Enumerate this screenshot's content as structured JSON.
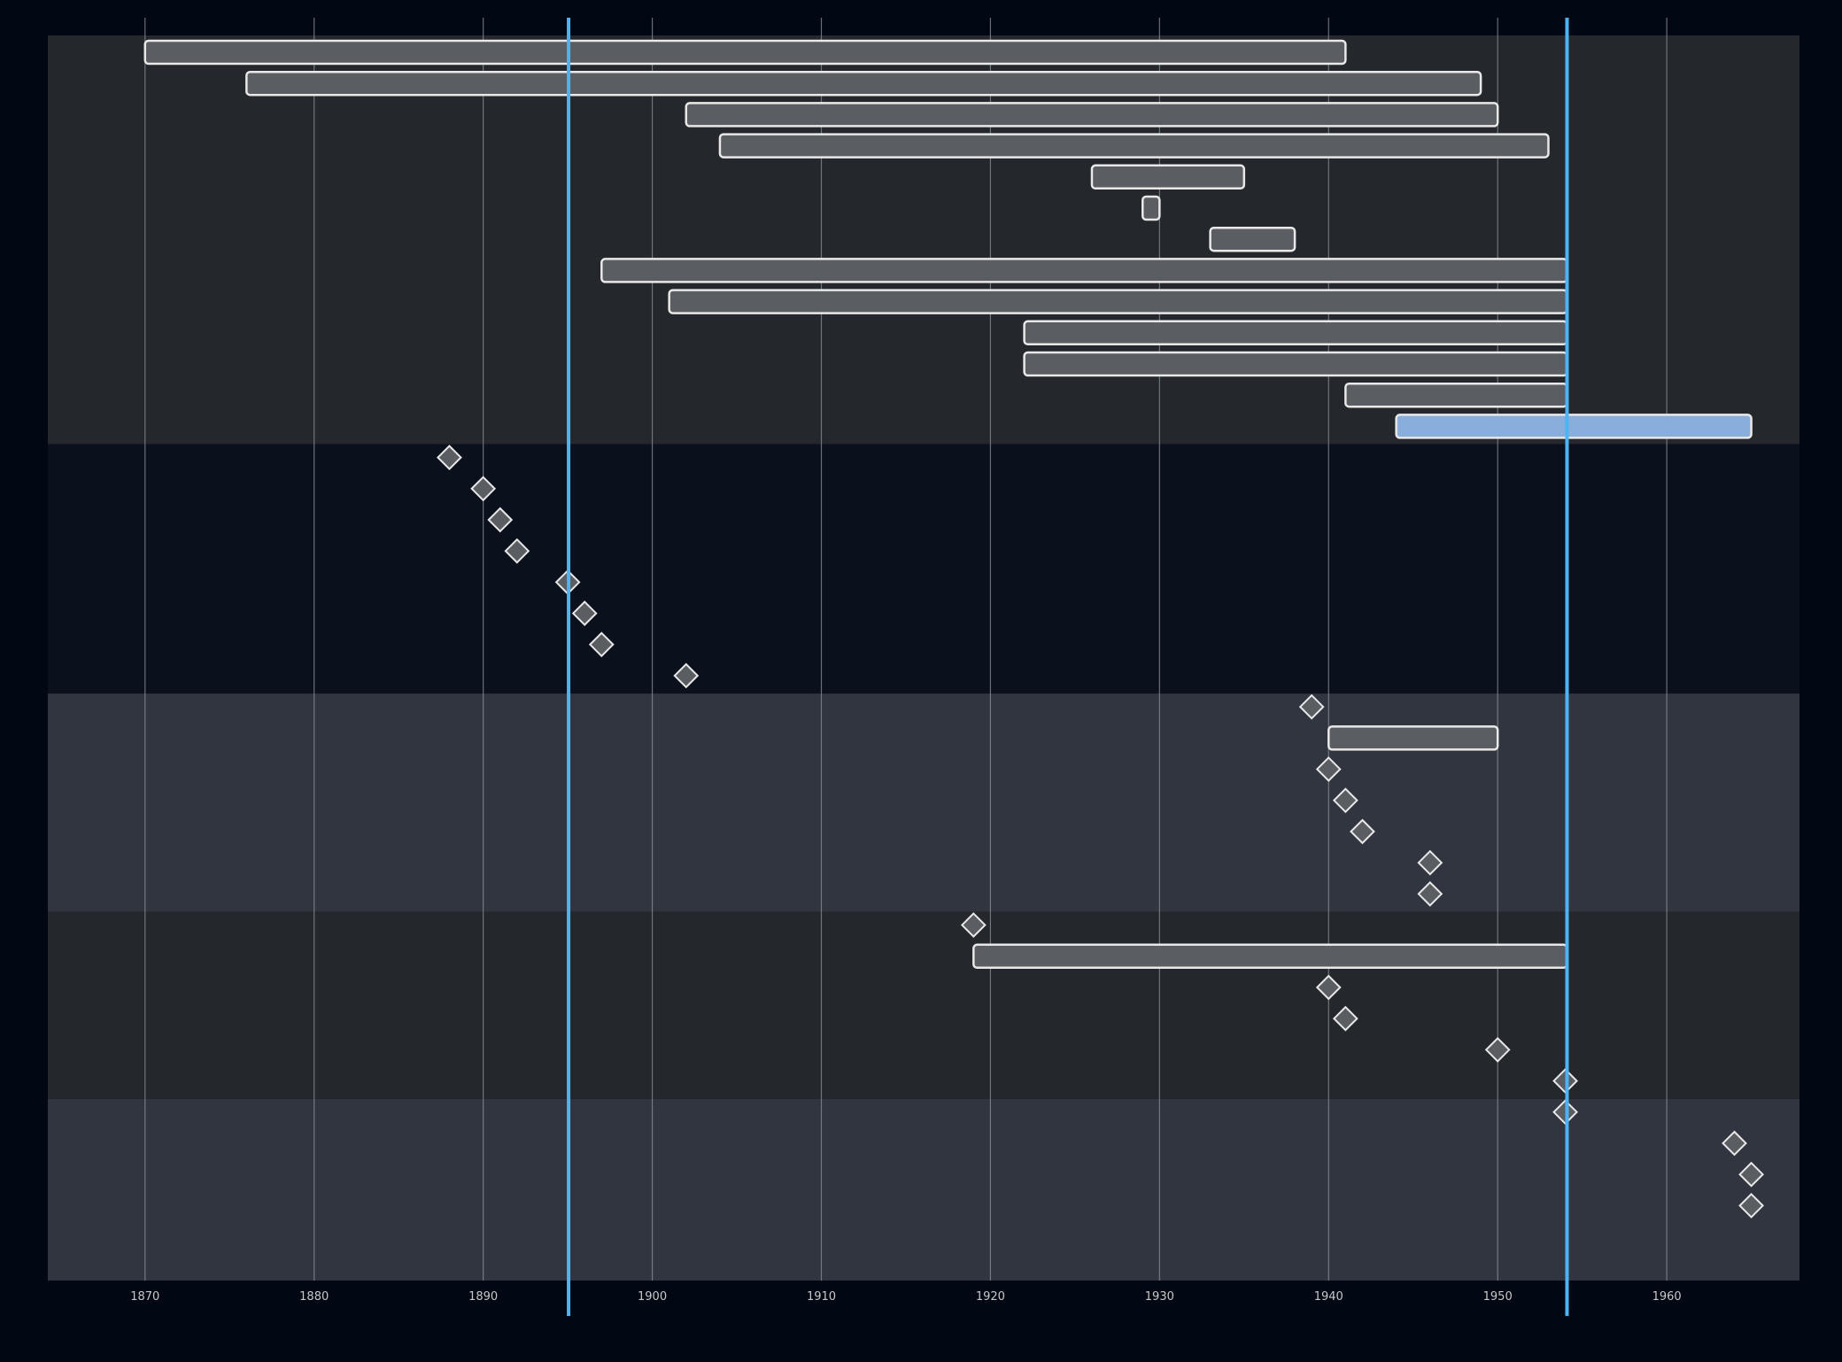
{
  "chart_data": {
    "type": "timeline",
    "title": "",
    "xlabel": "",
    "ylabel": "",
    "xlim": [
      1864.25,
      1967.85
    ],
    "x_ticks": [
      1870,
      1880,
      1890,
      1900,
      1910,
      1920,
      1930,
      1940,
      1950,
      1960
    ],
    "grid": true,
    "bands": [
      {
        "name": "",
        "row_start": 0,
        "row_end": 13,
        "color": "#24272b"
      },
      {
        "name": "",
        "row_start": 13,
        "row_end": 21,
        "color": "#0b111c"
      },
      {
        "name": "",
        "row_start": 21,
        "row_end": 28,
        "color": "#31353f"
      },
      {
        "name": "",
        "row_start": 28,
        "row_end": 34,
        "color": "#24272b"
      },
      {
        "name": "",
        "row_start": 34,
        "row_end": 40,
        "color": "#31353f"
      }
    ],
    "items": [
      {
        "row": 0,
        "kind": "range",
        "start": 1870.0,
        "end": 1941.0,
        "label": ""
      },
      {
        "row": 1,
        "kind": "range",
        "start": 1876.0,
        "end": 1949.0,
        "label": ""
      },
      {
        "row": 2,
        "kind": "range",
        "start": 1902.0,
        "end": 1950.0,
        "label": ""
      },
      {
        "row": 3,
        "kind": "range",
        "start": 1904.0,
        "end": 1953.0,
        "label": ""
      },
      {
        "row": 4,
        "kind": "range",
        "start": 1926.0,
        "end": 1935.0,
        "label": ""
      },
      {
        "row": 5,
        "kind": "range",
        "start": 1929.0,
        "end": 1930.0,
        "label": "",
        "label_pos": "right"
      },
      {
        "row": 6,
        "kind": "range",
        "start": 1933.0,
        "end": 1938.0,
        "label": "",
        "label_pos": "right"
      },
      {
        "row": 7,
        "kind": "range",
        "start": 1897.0,
        "end": 1954.1,
        "label": ""
      },
      {
        "row": 8,
        "kind": "range",
        "start": 1901.0,
        "end": 1954.1,
        "label": ""
      },
      {
        "row": 9,
        "kind": "range",
        "start": 1922.0,
        "end": 1954.1,
        "label": ""
      },
      {
        "row": 10,
        "kind": "range",
        "start": 1922.0,
        "end": 1954.1,
        "label": ""
      },
      {
        "row": 11,
        "kind": "range",
        "start": 1941.0,
        "end": 1954.1,
        "label": ""
      },
      {
        "row": 12,
        "kind": "range",
        "start": 1944.0,
        "end": 1965.0,
        "label": "",
        "highlight": true
      },
      {
        "row": 13,
        "kind": "point",
        "date": 1888.0,
        "label": ""
      },
      {
        "row": 14,
        "kind": "point",
        "date": 1890.0,
        "label": ""
      },
      {
        "row": 15,
        "kind": "point",
        "date": 1891.0,
        "label": ""
      },
      {
        "row": 16,
        "kind": "point",
        "date": 1892.0,
        "label": ""
      },
      {
        "row": 17,
        "kind": "point",
        "date": 1895.0,
        "label": ""
      },
      {
        "row": 18,
        "kind": "point",
        "date": 1896.0,
        "label": ""
      },
      {
        "row": 19,
        "kind": "point",
        "date": 1897.0,
        "label": ""
      },
      {
        "row": 20,
        "kind": "point",
        "date": 1902.0,
        "label": ""
      },
      {
        "row": 21,
        "kind": "point",
        "date": 1939.0,
        "label": ""
      },
      {
        "row": 22,
        "kind": "range",
        "start": 1940.0,
        "end": 1950.0,
        "label": ""
      },
      {
        "row": 23,
        "kind": "point",
        "date": 1940.0,
        "label": ""
      },
      {
        "row": 24,
        "kind": "point",
        "date": 1941.0,
        "label": ""
      },
      {
        "row": 25,
        "kind": "point",
        "date": 1942.0,
        "label": ""
      },
      {
        "row": 26,
        "kind": "point",
        "date": 1946.0,
        "label": ""
      },
      {
        "row": 27,
        "kind": "point",
        "date": 1946.0,
        "label": ""
      },
      {
        "row": 28,
        "kind": "point",
        "date": 1919.0,
        "label": ""
      },
      {
        "row": 29,
        "kind": "range",
        "start": 1919.0,
        "end": 1954.1,
        "label": ""
      },
      {
        "row": 30,
        "kind": "point",
        "date": 1940.0,
        "label": ""
      },
      {
        "row": 31,
        "kind": "point",
        "date": 1941.0,
        "label": ""
      },
      {
        "row": 32,
        "kind": "point",
        "date": 1950.0,
        "label": ""
      },
      {
        "row": 33,
        "kind": "point",
        "date": 1954.0,
        "label": "",
        "label_pos": "left"
      },
      {
        "row": 34,
        "kind": "point",
        "date": 1954.0,
        "label": ""
      },
      {
        "row": 35,
        "kind": "point",
        "date": 1964.0,
        "label": "",
        "label_pos": "left"
      },
      {
        "row": 36,
        "kind": "point",
        "date": 1965.0,
        "label": "",
        "label_pos": "left"
      },
      {
        "row": 37,
        "kind": "point",
        "date": 1965.0,
        "label": "",
        "label_pos": "left"
      }
    ],
    "markers": [
      {
        "date": 1895.05,
        "label": ""
      },
      {
        "date": 1954.1,
        "label": ""
      }
    ],
    "colors": {
      "background": "#010814",
      "grid": "#8a9098",
      "range_fill": "#5a5e62",
      "range_stroke": "#e8e8e8",
      "highlight_fill": "#8aaedc",
      "point_fill": "#5a5e62",
      "marker": "#4db3f2",
      "tick_text": "#c8c8c8"
    }
  }
}
